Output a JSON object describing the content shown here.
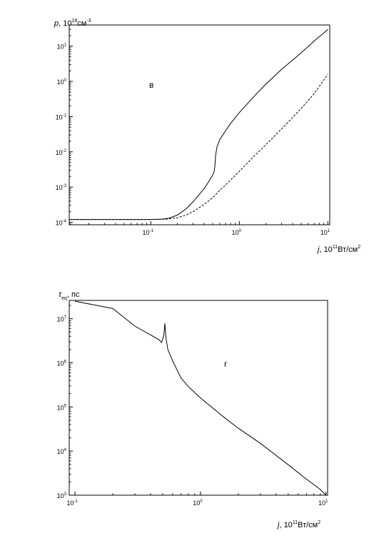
{
  "chart_data": [
    {
      "type": "line",
      "panel_tag": "в",
      "ylabel": {
        "main": "p",
        "sep": ", 10",
        "exp": "18",
        "unit": "см",
        "unit_exp": "-3"
      },
      "xlabel": {
        "main": "j",
        "sep": ", 10",
        "exp": "11",
        "unit": "Вт/см",
        "unit_exp": "2"
      },
      "x_scale": "log",
      "y_scale": "log",
      "xlim": [
        0.012,
        10.5
      ],
      "ylim": [
        8.5e-05,
        40
      ],
      "x_ticks": [
        {
          "base": "10",
          "exp": "-1",
          "value": 0.1
        },
        {
          "base": "10",
          "exp": "0",
          "value": 1
        },
        {
          "base": "10",
          "exp": "1",
          "value": 10
        }
      ],
      "y_ticks": [
        {
          "base": "10",
          "exp": "-4",
          "value": 0.0001
        },
        {
          "base": "10",
          "exp": "-3",
          "value": 0.001
        },
        {
          "base": "10",
          "exp": "-2",
          "value": 0.01
        },
        {
          "base": "10",
          "exp": "-1",
          "value": 0.1
        },
        {
          "base": "10",
          "exp": "0",
          "value": 1
        },
        {
          "base": "10",
          "exp": "1",
          "value": 10
        }
      ],
      "series": [
        {
          "style": "solid",
          "x": [
            0.012,
            0.1,
            0.13,
            0.16,
            0.2,
            0.25,
            0.3,
            0.35,
            0.4,
            0.45,
            0.5,
            0.52,
            0.53,
            0.54,
            0.56,
            0.6,
            0.65,
            0.7,
            0.8,
            1.0,
            1.5,
            2.0,
            3.0,
            5.0,
            7.0,
            10.0
          ],
          "y": [
            0.00012,
            0.00012,
            0.000122,
            0.00013,
            0.00016,
            0.00024,
            0.00038,
            0.0006,
            0.0009,
            0.0014,
            0.0022,
            0.0028,
            0.004,
            0.008,
            0.014,
            0.022,
            0.03,
            0.04,
            0.065,
            0.13,
            0.4,
            0.85,
            2.2,
            6.5,
            14,
            30
          ]
        },
        {
          "style": "dashed",
          "x": [
            0.012,
            0.1,
            0.15,
            0.2,
            0.25,
            0.3,
            0.4,
            0.5,
            0.6,
            0.8,
            1.0,
            1.5,
            2.0,
            3.0,
            5.0,
            7.0,
            10.0
          ],
          "y": [
            0.00012,
            0.00012,
            0.000123,
            0.000135,
            0.00016,
            0.0002,
            0.00032,
            0.0005,
            0.0008,
            0.0016,
            0.0028,
            0.008,
            0.016,
            0.045,
            0.17,
            0.45,
            1.6
          ]
        }
      ]
    },
    {
      "type": "line",
      "panel_tag": "г",
      "ylabel": {
        "main": "τ",
        "sub": "eq",
        "rest": ", пс"
      },
      "xlabel": {
        "main": "j",
        "sep": ", 10",
        "exp": "11",
        "unit": "Вт/см",
        "unit_exp": "2"
      },
      "x_scale": "log",
      "y_scale": "log",
      "xlim": [
        0.09,
        10.3
      ],
      "ylim": [
        1000,
        26000000
      ],
      "x_ticks": [
        {
          "base": "10",
          "exp": "-1",
          "value": 0.1
        },
        {
          "base": "10",
          "exp": "0",
          "value": 1
        },
        {
          "base": "10",
          "exp": "1",
          "value": 10
        }
      ],
      "y_ticks": [
        {
          "base": "10",
          "exp": "3",
          "value": 1000
        },
        {
          "base": "10",
          "exp": "4",
          "value": 10000
        },
        {
          "base": "10",
          "exp": "5",
          "value": 100000
        },
        {
          "base": "10",
          "exp": "6",
          "value": 1000000
        },
        {
          "base": "10",
          "exp": "7",
          "value": 10000000
        }
      ],
      "series": [
        {
          "style": "solid",
          "x": [
            0.1,
            0.2,
            0.3,
            0.4,
            0.47,
            0.49,
            0.51,
            0.52,
            0.53,
            0.55,
            0.6,
            0.7,
            0.8,
            1.0,
            1.5,
            2.0,
            3.0,
            5.0,
            7.0,
            9.0,
            10.0
          ],
          "y": [
            25000000,
            17000000,
            6800000,
            4300000,
            3300000,
            2900000,
            4200000,
            7800000,
            3800000,
            2000000,
            1100000,
            450000,
            290000,
            160000,
            62000,
            33000,
            15000,
            4900,
            2300,
            1350,
            1000
          ]
        }
      ]
    }
  ]
}
